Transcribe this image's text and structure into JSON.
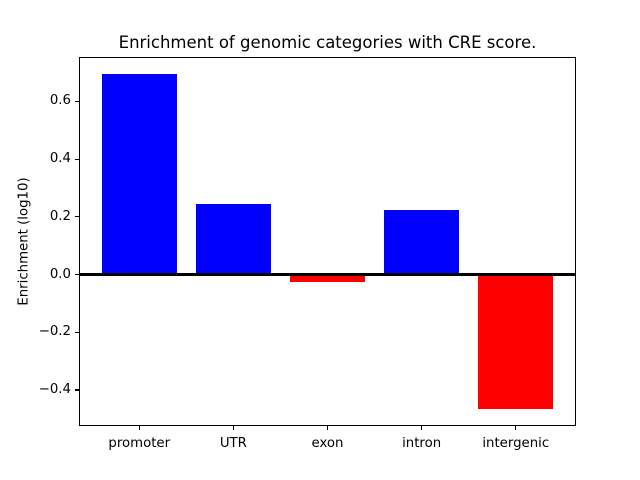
{
  "chart_data": {
    "type": "bar",
    "title": "Enrichment of genomic categories with CRE score.",
    "xlabel": "",
    "ylabel": "Enrichment (log10)",
    "categories": [
      "promoter",
      "UTR",
      "exon",
      "intron",
      "intergenic"
    ],
    "values": [
      0.695,
      0.245,
      -0.025,
      0.225,
      -0.465
    ],
    "positive_color": "#0000ff",
    "negative_color": "#ff0000",
    "bar_colors": [
      "#0000ff",
      "#0000ff",
      "#ff0000",
      "#0000ff",
      "#ff0000"
    ],
    "yticks": [
      {
        "value": 0.6,
        "label": "0.6"
      },
      {
        "value": 0.4,
        "label": "0.4"
      },
      {
        "value": 0.2,
        "label": "0.2"
      },
      {
        "value": 0.0,
        "label": "0.0"
      },
      {
        "value": -0.2,
        "label": "−0.2"
      },
      {
        "value": -0.4,
        "label": "−0.4"
      }
    ],
    "ylim": [
      -0.525,
      0.754
    ],
    "xlim": [
      -0.64,
      4.64
    ],
    "bar_width": 0.8,
    "grid": false,
    "legend": null,
    "zero_line_color": "#000000",
    "axis_color": "#000000",
    "background_color": "#ffffff"
  }
}
